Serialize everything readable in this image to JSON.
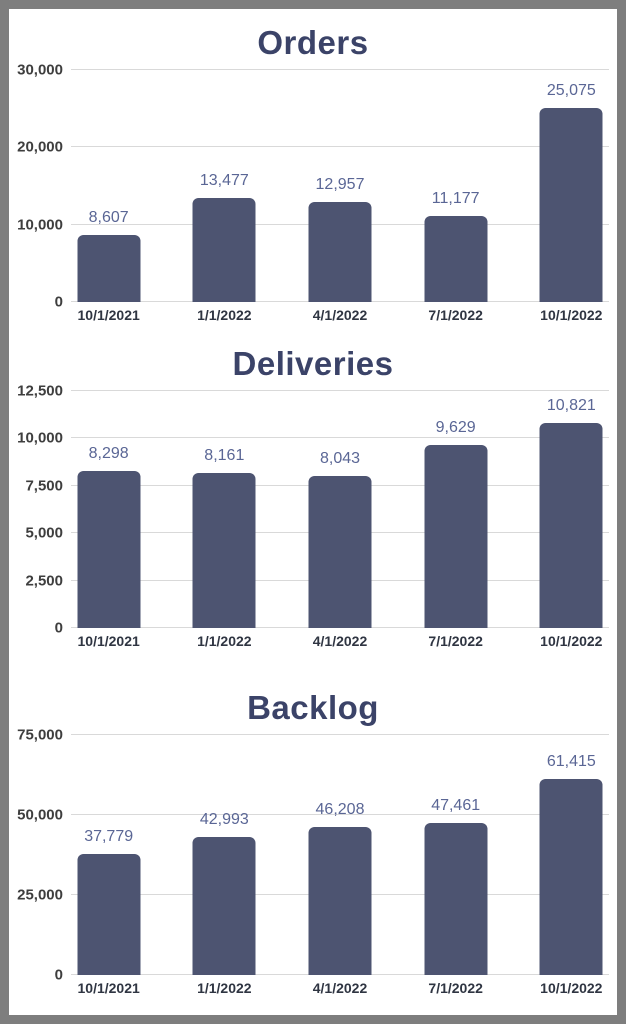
{
  "colors": {
    "bar": "#4d5471",
    "title": "#3b4368",
    "data_label": "#5a6695",
    "tick_label": "#3e3e3e",
    "x_label": "#2f3542",
    "gridline": "#d9d9d9",
    "frame_border": "#7e7e7e",
    "background": "#ffffff"
  },
  "chart_data": [
    {
      "type": "bar",
      "title": "Orders",
      "categories": [
        "10/1/2021",
        "1/1/2022",
        "4/1/2022",
        "7/1/2022",
        "10/1/2022"
      ],
      "values": [
        8607,
        13477,
        12957,
        11177,
        25075
      ],
      "value_labels": [
        "8,607",
        "13,477",
        "12,957",
        "11,177",
        "25,075"
      ],
      "xlabel": "",
      "ylabel": "",
      "ylim": [
        0,
        30000
      ],
      "yticks": [
        0,
        10000,
        20000,
        30000
      ],
      "ytick_labels": [
        "0",
        "10,000",
        "20,000",
        "30,000"
      ],
      "grid": true,
      "legend": "none",
      "data_labels": true
    },
    {
      "type": "bar",
      "title": "Deliveries",
      "categories": [
        "10/1/2021",
        "1/1/2022",
        "4/1/2022",
        "7/1/2022",
        "10/1/2022"
      ],
      "values": [
        8298,
        8161,
        8043,
        9629,
        10821
      ],
      "value_labels": [
        "8,298",
        "8,161",
        "8,043",
        "9,629",
        "10,821"
      ],
      "xlabel": "",
      "ylabel": "",
      "ylim": [
        0,
        12500
      ],
      "yticks": [
        0,
        2500,
        5000,
        7500,
        10000,
        12500
      ],
      "ytick_labels": [
        "0",
        "2,500",
        "5,000",
        "7,500",
        "10,000",
        "12,500"
      ],
      "grid": true,
      "legend": "none",
      "data_labels": true
    },
    {
      "type": "bar",
      "title": "Backlog",
      "categories": [
        "10/1/2021",
        "1/1/2022",
        "4/1/2022",
        "7/1/2022",
        "10/1/2022"
      ],
      "values": [
        37779,
        42993,
        46208,
        47461,
        61415
      ],
      "value_labels": [
        "37,779",
        "42,993",
        "46,208",
        "47,461",
        "61,415"
      ],
      "xlabel": "",
      "ylabel": "",
      "ylim": [
        0,
        75000
      ],
      "yticks": [
        0,
        25000,
        50000,
        75000
      ],
      "ytick_labels": [
        "0",
        "25,000",
        "50,000",
        "75,000"
      ],
      "grid": true,
      "legend": "none",
      "data_labels": true
    }
  ]
}
